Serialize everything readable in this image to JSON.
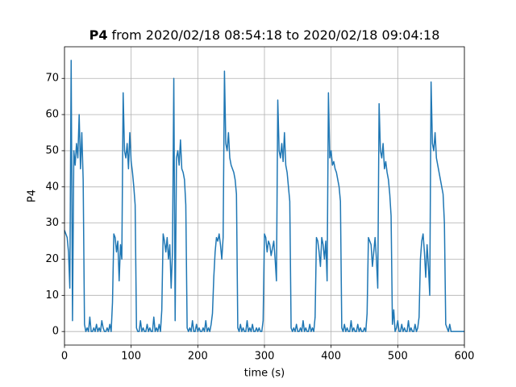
{
  "chart_data": {
    "type": "line",
    "title_bold": "P4",
    "title": "from 2020/02/18 08:54:18 to 2020/02/18 09:04:18",
    "xlabel": "time (s)",
    "ylabel": "P4",
    "xlim": [
      0,
      600
    ],
    "xticks": [
      0,
      100,
      200,
      300,
      400,
      500,
      600
    ],
    "ylim": [
      -3.75,
      78.75
    ],
    "yticks": [
      0,
      10,
      20,
      30,
      40,
      50,
      60,
      70
    ],
    "grid": true,
    "x": [
      0,
      2,
      4,
      6,
      8,
      10,
      12,
      14,
      16,
      18,
      20,
      22,
      24,
      26,
      28,
      30,
      32,
      34,
      36,
      38,
      40,
      42,
      44,
      46,
      48,
      50,
      52,
      54,
      56,
      58,
      60,
      62,
      64,
      66,
      68,
      70,
      72,
      74,
      76,
      78,
      80,
      82,
      84,
      86,
      88,
      90,
      92,
      94,
      96,
      98,
      100,
      102,
      104,
      106,
      108,
      110,
      112,
      114,
      116,
      118,
      120,
      122,
      124,
      126,
      128,
      130,
      132,
      134,
      136,
      138,
      140,
      142,
      144,
      146,
      148,
      150,
      152,
      154,
      156,
      158,
      160,
      162,
      164,
      166,
      168,
      170,
      172,
      174,
      176,
      178,
      180,
      182,
      184,
      186,
      188,
      190,
      192,
      194,
      196,
      198,
      200,
      202,
      204,
      206,
      208,
      210,
      212,
      214,
      216,
      218,
      220,
      222,
      224,
      226,
      228,
      230,
      232,
      234,
      236,
      238,
      240,
      242,
      244,
      246,
      248,
      250,
      252,
      254,
      256,
      258,
      260,
      262,
      264,
      266,
      268,
      270,
      272,
      274,
      276,
      278,
      280,
      282,
      284,
      286,
      288,
      290,
      292,
      294,
      296,
      298,
      300,
      302,
      304,
      306,
      308,
      310,
      312,
      314,
      316,
      318,
      320,
      322,
      324,
      326,
      328,
      330,
      332,
      334,
      336,
      338,
      340,
      342,
      344,
      346,
      348,
      350,
      352,
      354,
      356,
      358,
      360,
      362,
      364,
      366,
      368,
      370,
      372,
      374,
      376,
      378,
      380,
      382,
      384,
      386,
      388,
      390,
      392,
      394,
      396,
      398,
      400,
      402,
      404,
      406,
      408,
      410,
      412,
      414,
      416,
      418,
      420,
      422,
      424,
      426,
      428,
      430,
      432,
      434,
      436,
      438,
      440,
      442,
      444,
      446,
      448,
      450,
      452,
      454,
      456,
      458,
      460,
      462,
      464,
      466,
      468,
      470,
      472,
      474,
      476,
      478,
      480,
      482,
      484,
      486,
      488,
      490,
      492,
      494,
      496,
      498,
      500,
      502,
      504,
      506,
      508,
      510,
      512,
      514,
      516,
      518,
      520,
      522,
      524,
      526,
      528,
      530,
      532,
      534,
      536,
      538,
      540,
      542,
      544,
      546,
      548,
      550,
      552,
      554,
      556,
      558,
      560,
      562,
      564,
      566,
      568,
      570,
      572,
      574,
      576,
      578,
      580,
      582,
      584,
      586,
      588,
      590,
      592,
      594,
      596,
      598,
      600
    ],
    "series": [
      {
        "color": "#1f77b4",
        "values": [
          28,
          27,
          26,
          22,
          12,
          75,
          3,
          50,
          46,
          52,
          48,
          60,
          45,
          55,
          42,
          2,
          0,
          1,
          0,
          4,
          0,
          0,
          1,
          0,
          2,
          0,
          1,
          0,
          3,
          1,
          0,
          0,
          1,
          0,
          2,
          0,
          8,
          27,
          26,
          22,
          25,
          14,
          24,
          20,
          66,
          50,
          48,
          52,
          45,
          55,
          47,
          44,
          40,
          35,
          1,
          0,
          0,
          3,
          0,
          1,
          0,
          0,
          2,
          0,
          1,
          0,
          0,
          4,
          0,
          1,
          0,
          2,
          0,
          6,
          27,
          25,
          22,
          26,
          20,
          24,
          12,
          22,
          70,
          3,
          48,
          50,
          46,
          53,
          45,
          44,
          42,
          35,
          1,
          0,
          1,
          0,
          3,
          0,
          0,
          2,
          0,
          1,
          0,
          0,
          1,
          0,
          3,
          0,
          1,
          0,
          2,
          5,
          15,
          22,
          26,
          25,
          27,
          24,
          20,
          26,
          72,
          52,
          50,
          55,
          48,
          46,
          45,
          44,
          42,
          38,
          1,
          0,
          2,
          0,
          1,
          0,
          0,
          3,
          0,
          1,
          0,
          2,
          0,
          0,
          1,
          0,
          1,
          0,
          0,
          3,
          27,
          26,
          22,
          25,
          24,
          21,
          23,
          25,
          20,
          14,
          64,
          50,
          48,
          52,
          47,
          55,
          46,
          44,
          40,
          36,
          1,
          0,
          1,
          0,
          2,
          0,
          0,
          1,
          0,
          3,
          0,
          1,
          0,
          0,
          2,
          0,
          1,
          0,
          4,
          26,
          25,
          22,
          18,
          26,
          24,
          20,
          25,
          14,
          66,
          48,
          50,
          46,
          47,
          45,
          44,
          42,
          40,
          36,
          1,
          0,
          2,
          0,
          1,
          0,
          0,
          3,
          0,
          1,
          0,
          0,
          2,
          0,
          1,
          0,
          0,
          1,
          0,
          5,
          26,
          25,
          24,
          18,
          22,
          26,
          20,
          12,
          63,
          50,
          48,
          52,
          45,
          47,
          44,
          42,
          38,
          32,
          2,
          6,
          0,
          1,
          3,
          0,
          0,
          2,
          0,
          1,
          0,
          0,
          3,
          0,
          1,
          0,
          0,
          2,
          0,
          1,
          4,
          20,
          25,
          27,
          22,
          15,
          24,
          18,
          10,
          69,
          52,
          50,
          55,
          48,
          46,
          44,
          42,
          40,
          38,
          30,
          2,
          1,
          0,
          2,
          0,
          0,
          0,
          0,
          0,
          0,
          0,
          0,
          0,
          0,
          0
        ]
      }
    ]
  }
}
